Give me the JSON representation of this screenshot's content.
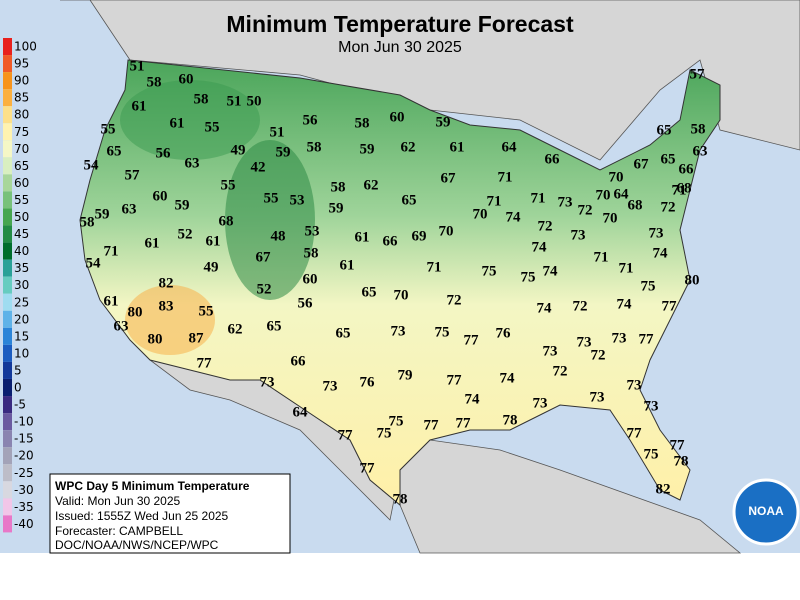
{
  "title": "Minimum Temperature Forecast",
  "subtitle": "Mon Jun 30 2025",
  "legend": {
    "values": [
      100,
      95,
      90,
      85,
      80,
      75,
      70,
      65,
      60,
      55,
      50,
      45,
      40,
      35,
      30,
      25,
      20,
      15,
      10,
      5,
      0,
      -5,
      -10,
      -15,
      -20,
      -25,
      -30,
      -35,
      -40
    ],
    "colors": [
      "#e8201c",
      "#f05a28",
      "#f7941d",
      "#fbb040",
      "#fde08a",
      "#fff3b0",
      "#f5f7c6",
      "#d9efc0",
      "#a8d69a",
      "#78c17a",
      "#47a650",
      "#238b45",
      "#006d2c",
      "#2aa198",
      "#66ccc0",
      "#9fdcf0",
      "#5fb2e8",
      "#2b84d8",
      "#1b5cc0",
      "#12389a",
      "#0a1f70",
      "#3a2a80",
      "#6b5aa0",
      "#8a84b0",
      "#a3a3b8",
      "#bdbdc8",
      "#d8d8e0",
      "#f2c6e8",
      "#e878c8"
    ]
  },
  "info": {
    "heading": "WPC Day 5 Minimum Temperature",
    "valid": "Valid: Mon Jun 30 2025",
    "issued": "Issued: 1555Z Wed Jun 25 2025",
    "forecaster": "Forecaster: CAMPBELL",
    "source": "DOC/NOAA/NWS/NCEP/WPC"
  },
  "logo": "NOAA",
  "temperatures": [
    51,
    58,
    60,
    58,
    51,
    50,
    61,
    61,
    55,
    55,
    56,
    60,
    59,
    58,
    51,
    65,
    56,
    49,
    59,
    58,
    59,
    62,
    61,
    64,
    66,
    63,
    42,
    54,
    57,
    55,
    58,
    62,
    67,
    71,
    55,
    53,
    65,
    60,
    59,
    63,
    59,
    71,
    71,
    73,
    72,
    70,
    70,
    64,
    68,
    70,
    67,
    65,
    65,
    58,
    63,
    66,
    68,
    71,
    72,
    57,
    58,
    59,
    68,
    70,
    74,
    72,
    73,
    73,
    74,
    71,
    71,
    52,
    61,
    61,
    48,
    53,
    58,
    61,
    66,
    69,
    70,
    71,
    54,
    49,
    67,
    60,
    61,
    71,
    75,
    74,
    74,
    75,
    80,
    75,
    82,
    83,
    61,
    80,
    52,
    56,
    65,
    70,
    72,
    74,
    72,
    74,
    77,
    55,
    63,
    80,
    87,
    62,
    65,
    65,
    73,
    75,
    77,
    76,
    73,
    77,
    77,
    66,
    73,
    73,
    72,
    79,
    76,
    73,
    73,
    77,
    74,
    72,
    73,
    74,
    73,
    73,
    73,
    64,
    75,
    75,
    77,
    77,
    78,
    77,
    77,
    77,
    75,
    78,
    77,
    78,
    82
  ]
}
